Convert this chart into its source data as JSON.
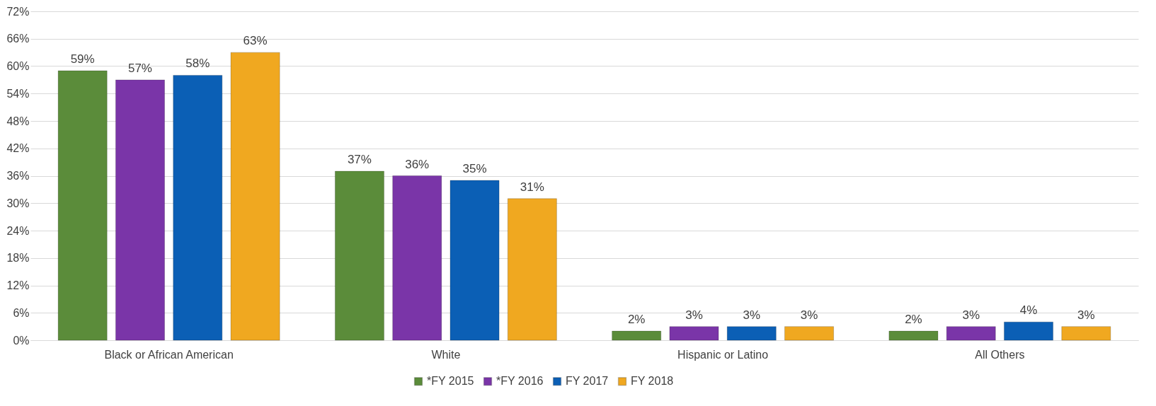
{
  "chart_data": {
    "type": "bar",
    "categories": [
      "Black or African American",
      "White",
      "Hispanic or Latino",
      "All Others"
    ],
    "series": [
      {
        "name": "*FY 2015",
        "color": "#5b8c3a",
        "values": [
          59,
          37,
          2,
          2
        ],
        "value_labels": [
          "59%",
          "37%",
          "2%",
          "2%"
        ]
      },
      {
        "name": "*FY 2016",
        "color": "#7a35a8",
        "values": [
          57,
          36,
          3,
          3
        ],
        "value_labels": [
          "57%",
          "36%",
          "3%",
          "3%"
        ]
      },
      {
        "name": "FY 2017",
        "color": "#0b5fb5",
        "values": [
          58,
          35,
          3,
          4
        ],
        "value_labels": [
          "58%",
          "35%",
          "3%",
          "4%"
        ]
      },
      {
        "name": "FY 2018",
        "color": "#f0a820",
        "values": [
          63,
          31,
          3,
          3
        ],
        "value_labels": [
          "63%",
          "31%",
          "3%",
          "3%"
        ]
      }
    ],
    "ylim": [
      0,
      72
    ],
    "yticks": [
      {
        "value": 0,
        "label": "0%"
      },
      {
        "value": 6,
        "label": "6%"
      },
      {
        "value": 12,
        "label": "12%"
      },
      {
        "value": 18,
        "label": "18%"
      },
      {
        "value": 24,
        "label": "24%"
      },
      {
        "value": 30,
        "label": "30%"
      },
      {
        "value": 36,
        "label": "36%"
      },
      {
        "value": 42,
        "label": "42%"
      },
      {
        "value": 48,
        "label": "48%"
      },
      {
        "value": 54,
        "label": "54%"
      },
      {
        "value": 60,
        "label": "60%"
      },
      {
        "value": 66,
        "label": "66%"
      },
      {
        "value": 72,
        "label": "72%"
      }
    ],
    "grid": "y",
    "legend": "bottom"
  }
}
